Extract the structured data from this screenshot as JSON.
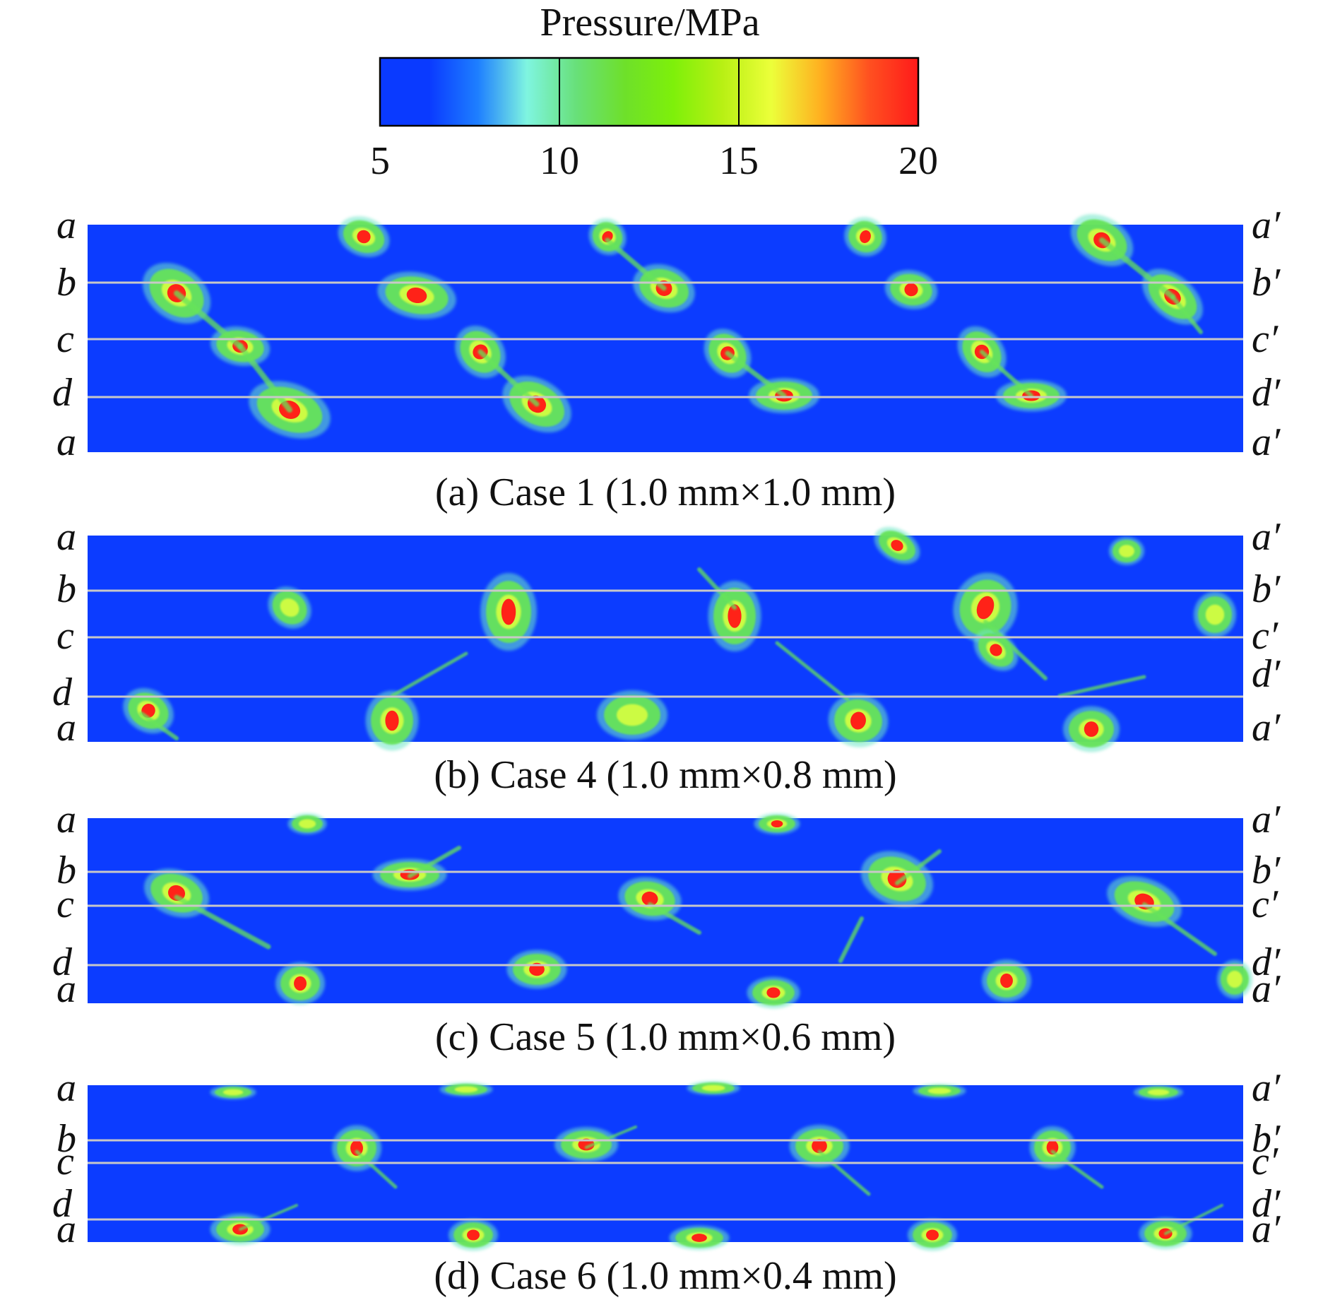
{
  "colorbar": {
    "title": "Pressure/MPa",
    "ticks": [
      "5",
      "10",
      "15",
      "20"
    ],
    "colors": [
      "#0a3aff",
      "#0a3aff",
      "#1e7fff",
      "#7ff5e0",
      "#68e07a",
      "#6ee02a",
      "#7ef00a",
      "#b8f014",
      "#ecff3a",
      "#ffb020",
      "#ff5020",
      "#ff1a1a"
    ]
  },
  "colors": {
    "background": "#0c3cff",
    "line": "#c8c8c8",
    "green": "#66e35a",
    "cyan": "#6ee6c8",
    "yellow": "#d8ff40",
    "red": "#ff2218"
  },
  "panels": [
    {
      "caption": "(a) Case 1 (1.0 mm×1.0 mm)",
      "left_labels": [
        "a",
        "b",
        "c",
        "d",
        "a"
      ],
      "right_labels": [
        "a′",
        "b′",
        "c′",
        "d′",
        "a′"
      ]
    },
    {
      "caption": "(b) Case 4 (1.0 mm×0.8 mm)",
      "left_labels": [
        "a",
        "b",
        "c",
        "d",
        "a"
      ],
      "right_labels": [
        "a′",
        "b′",
        "c′",
        "d′",
        "a′"
      ]
    },
    {
      "caption": "(c) Case 5 (1.0 mm×0.6 mm)",
      "left_labels": [
        "a",
        "b",
        "c",
        "d",
        "a"
      ],
      "right_labels": [
        "a′",
        "b′",
        "c′",
        "d′",
        "a′"
      ]
    },
    {
      "caption": "(d) Case 6 (1.0 mm×0.4 mm)",
      "left_labels": [
        "a",
        "b",
        "c",
        "d",
        "a"
      ],
      "right_labels": [
        "a′",
        "b′",
        "c′",
        "d′",
        "a′"
      ]
    }
  ]
}
